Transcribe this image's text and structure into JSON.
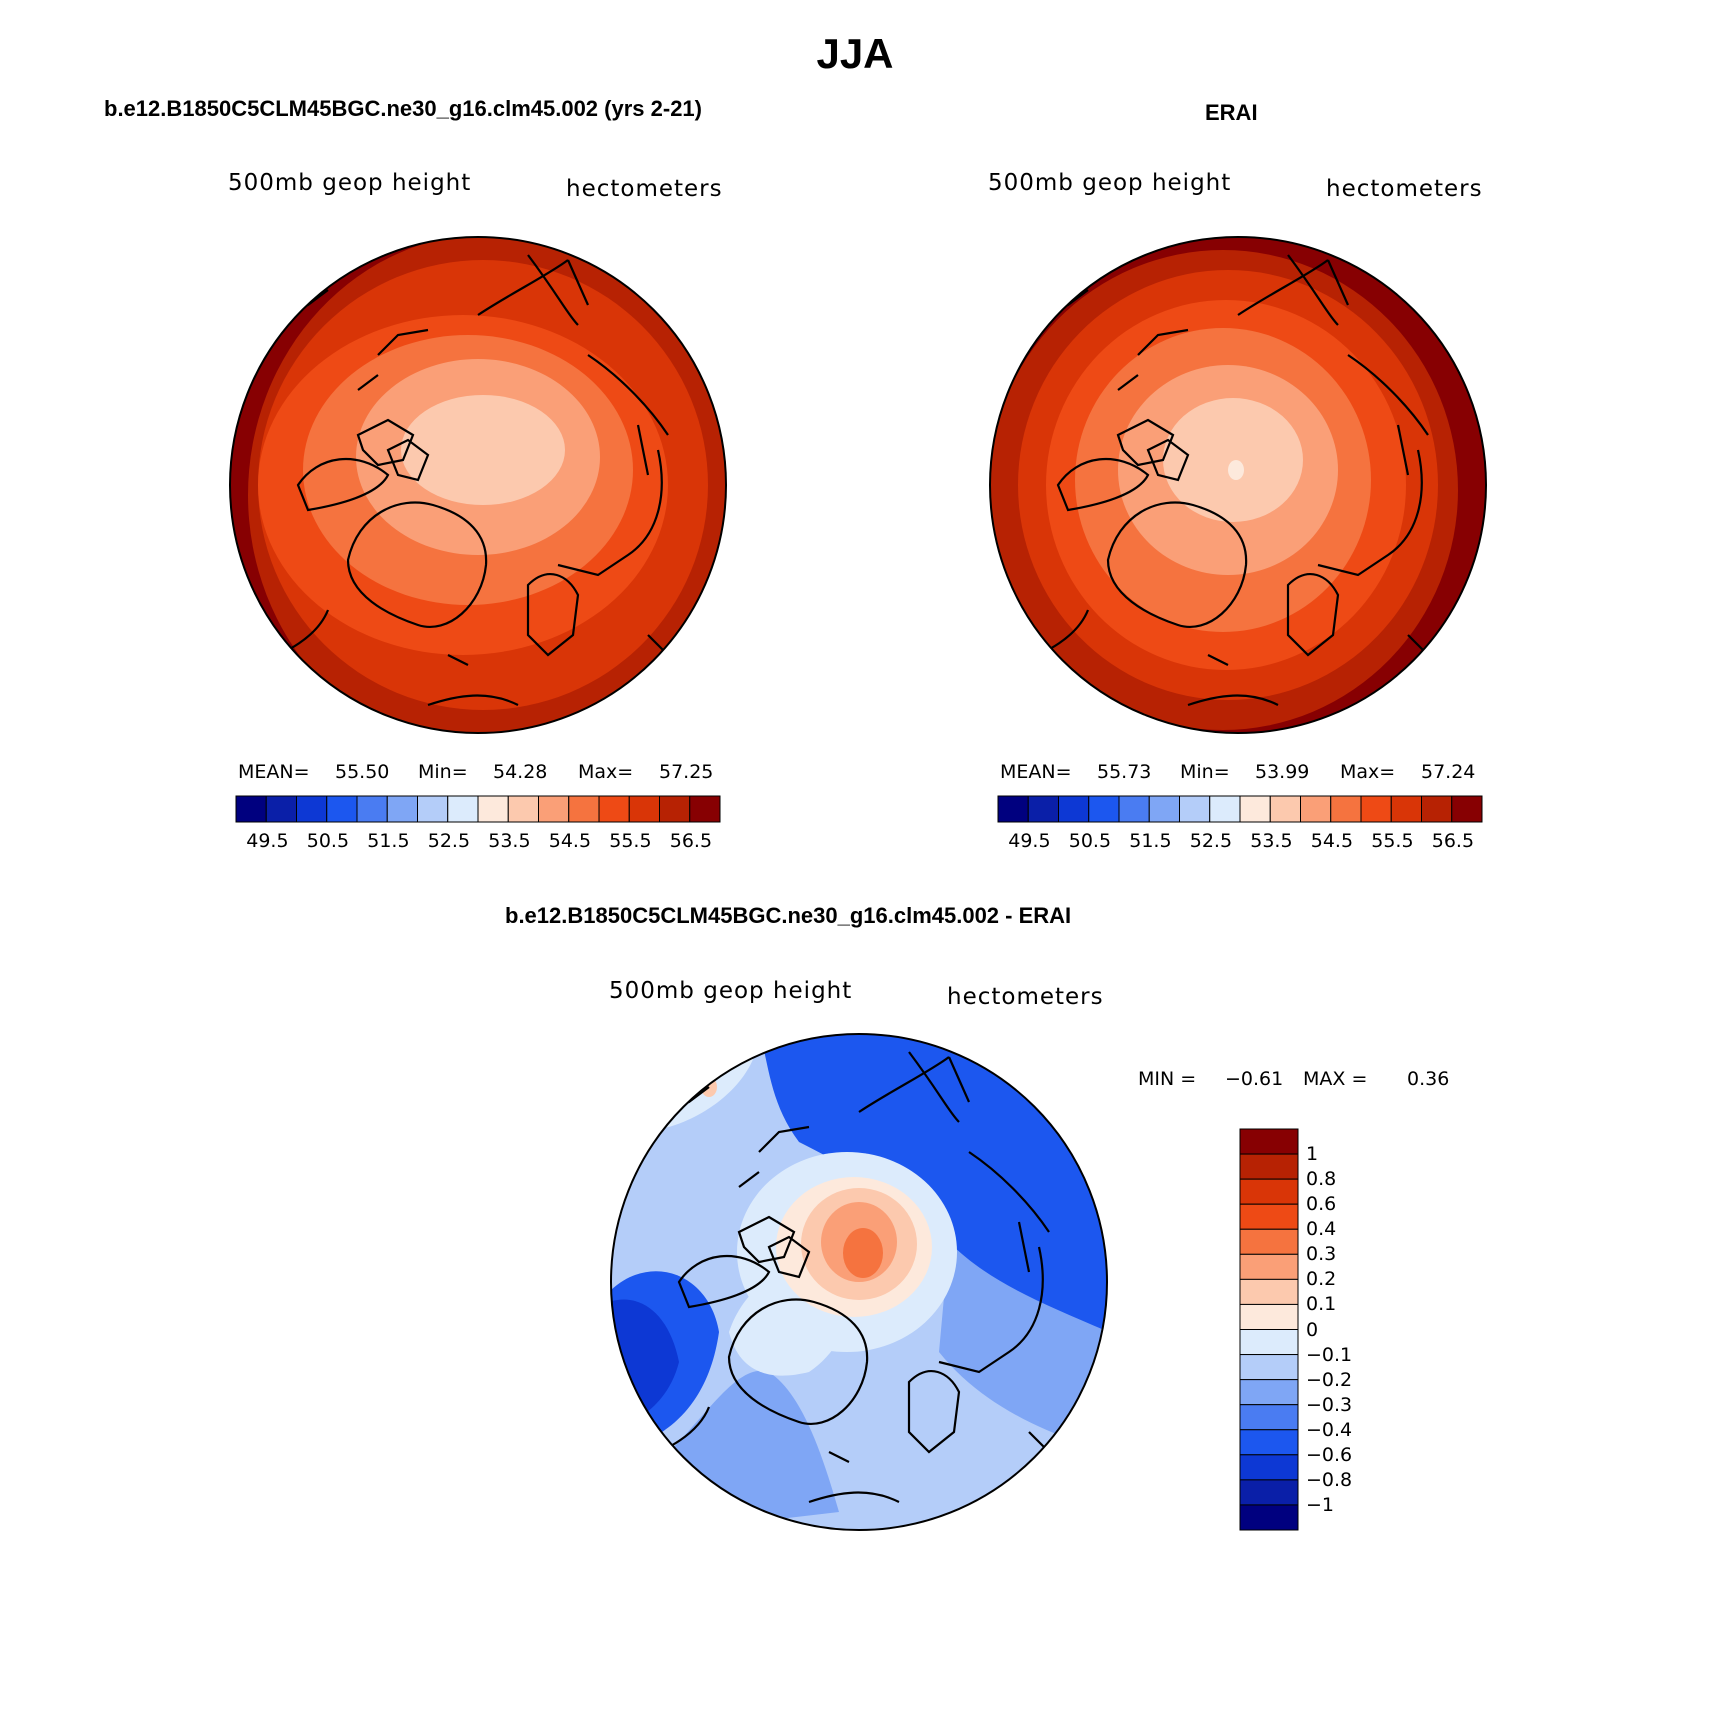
{
  "figure_title": "JJA",
  "panels": {
    "model": {
      "title": "b.e12.B1850C5CLM45BGC.ne30_g16.clm45.002 (yrs 2-21)",
      "variable_label": "500mb geop height",
      "units_label": "hectometers",
      "stats": {
        "mean_label": "MEAN=",
        "mean_value": "55.50",
        "min_label": "Min=",
        "min_value": "54.28",
        "max_label": "Max=",
        "max_value": "57.25"
      }
    },
    "obs": {
      "title": "ERAI",
      "variable_label": "500mb geop height",
      "units_label": "hectometers",
      "stats": {
        "mean_label": "MEAN=",
        "mean_value": "55.73",
        "min_label": "Min=",
        "min_value": "53.99",
        "max_label": "Max=",
        "max_value": "57.24"
      }
    },
    "diff": {
      "title": "b.e12.B1850C5CLM45BGC.ne30_g16.clm45.002 - ERAI",
      "variable_label": "500mb geop height",
      "units_label": "hectometers",
      "stats": {
        "min_label": "MIN =",
        "min_value": "−0.61",
        "max_label": "MAX =",
        "max_value": "0.36"
      }
    }
  },
  "colorbars": {
    "abs": {
      "ticks": [
        "49.5",
        "50.5",
        "51.5",
        "52.5",
        "53.5",
        "54.5",
        "55.5",
        "56.5"
      ],
      "colors": [
        "#00007f",
        "#0a1fa8",
        "#0d38d4",
        "#1c57ef",
        "#4a7cf2",
        "#7fa6f5",
        "#b4cdf9",
        "#dcebfc",
        "#fde9dc",
        "#fcc9ae",
        "#fa9f77",
        "#f5733f",
        "#ee4a15",
        "#d93507",
        "#b72203",
        "#870002"
      ]
    },
    "diff": {
      "ticks": [
        "1",
        "0.8",
        "0.6",
        "0.4",
        "0.3",
        "0.2",
        "0.1",
        "0",
        "−0.1",
        "−0.2",
        "−0.3",
        "−0.4",
        "−0.6",
        "−0.8",
        "−1"
      ],
      "colors": [
        "#870002",
        "#b72203",
        "#d93507",
        "#ee4a15",
        "#f5733f",
        "#fa9f77",
        "#fcc9ae",
        "#fde9dc",
        "#dcebfc",
        "#b4cdf9",
        "#7fa6f5",
        "#4a7cf2",
        "#1c57ef",
        "#0d38d4",
        "#0a1fa8",
        "#00007f"
      ]
    }
  }
}
